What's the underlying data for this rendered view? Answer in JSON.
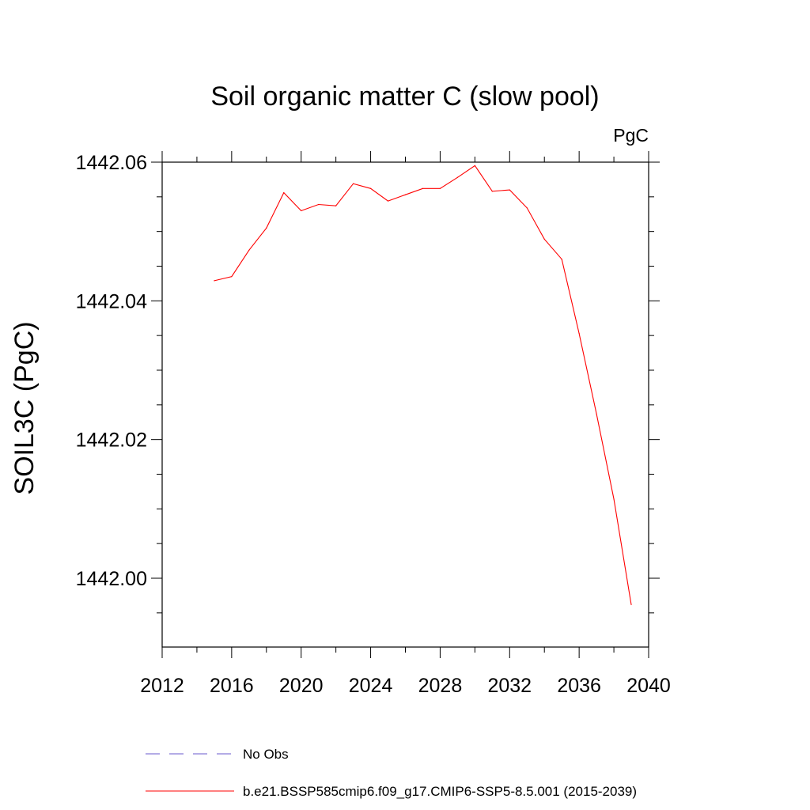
{
  "chart_data": {
    "type": "line",
    "title": "Soil organic matter C (slow pool)",
    "units_label": "PgC",
    "ylabel": "SOIL3C  (PgC)",
    "xlabel": "",
    "xlim": [
      2012,
      2040
    ],
    "ylim": [
      1441.99,
      1442.06
    ],
    "x_ticks": [
      2012,
      2016,
      2020,
      2024,
      2028,
      2032,
      2036,
      2040
    ],
    "x_tick_labels": [
      "2012",
      "2016",
      "2020",
      "2024",
      "2028",
      "2032",
      "2036",
      "2040"
    ],
    "y_ticks": [
      1442.0,
      1442.02,
      1442.04,
      1442.06
    ],
    "y_tick_labels": [
      "1442.00",
      "1442.02",
      "1442.04",
      "1442.06"
    ],
    "grid": false,
    "legend_position": "bottom",
    "series": [
      {
        "name": "No Obs",
        "color": "#6a5acd",
        "style": "dashed",
        "x": [],
        "values": []
      },
      {
        "name": "b.e21.BSSP585cmip6.f09_g17.CMIP6-SSP5-8.5.001 (2015-2039)",
        "color": "#ff0000",
        "style": "solid",
        "x": [
          2015,
          2016,
          2017,
          2018,
          2019,
          2020,
          2021,
          2022,
          2023,
          2024,
          2025,
          2026,
          2027,
          2028,
          2029,
          2030,
          2031,
          2032,
          2033,
          2034,
          2035,
          2036,
          2037,
          2038,
          2039
        ],
        "values": [
          1442.0429,
          1442.0435,
          1442.0473,
          1442.0505,
          1442.0556,
          1442.053,
          1442.0539,
          1442.0537,
          1442.0569,
          1442.0562,
          1442.0544,
          1442.0553,
          1442.0562,
          1442.0562,
          1442.0578,
          1442.0595,
          1442.0558,
          1442.056,
          1442.0534,
          1442.0489,
          1442.046,
          1442.0353,
          1442.0237,
          1442.0114,
          1441.9962
        ]
      }
    ]
  }
}
